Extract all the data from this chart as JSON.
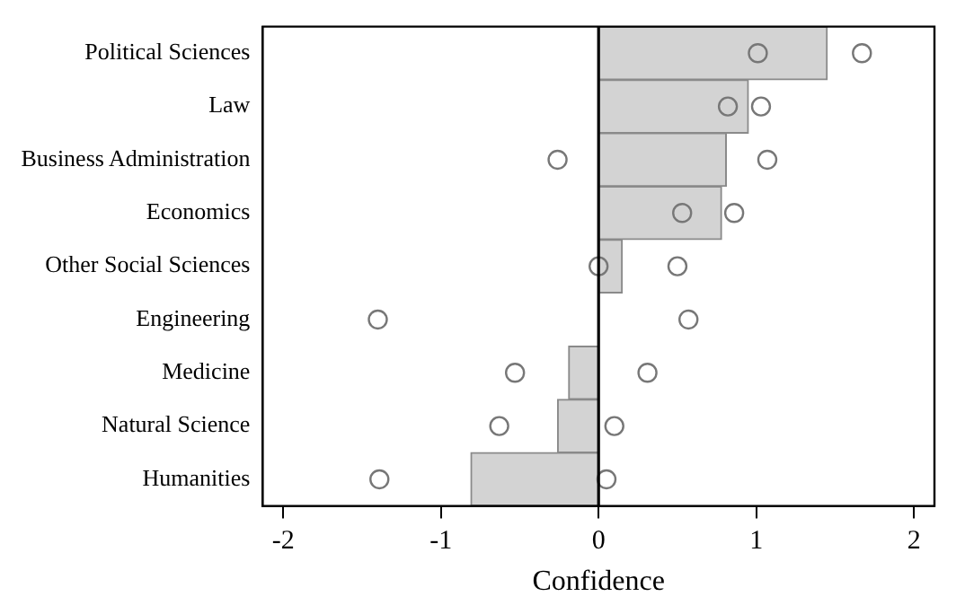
{
  "chart_data": {
    "type": "bar",
    "orientation": "horizontal",
    "xlabel": "Confidence",
    "categories": [
      "Political Sciences",
      "Law",
      "Business Administration",
      "Economics",
      "Other Social Sciences",
      "Engineering",
      "Medicine",
      "Natural Science",
      "Humanities"
    ],
    "series": [
      {
        "color": "#d3d3d3",
        "values": [
          1.45,
          0.95,
          0.81,
          0.78,
          0.15,
          0,
          -0.19,
          -0.26,
          -0.81
        ]
      },
      {
        "type": "scatter",
        "color": "#777777",
        "marker": "circle",
        "values": [
          1.01,
          0.82,
          -0.26,
          0.53,
          0.0,
          -1.4,
          -0.53,
          -0.63,
          -1.39
        ]
      },
      {
        "type": "scatter",
        "color": "#777777",
        "marker": "circle",
        "values": [
          1.67,
          1.03,
          1.07,
          0.86,
          0.5,
          0.57,
          0.31,
          0.1,
          0.05
        ]
      }
    ],
    "xlim": [
      -2.13,
      2.13
    ],
    "xticks": [
      -2,
      -1,
      0,
      1,
      2
    ],
    "ref_lines": [
      {
        "axis": "x",
        "value": 0,
        "color": "#000000"
      }
    ],
    "grid": false,
    "legend": false
  }
}
